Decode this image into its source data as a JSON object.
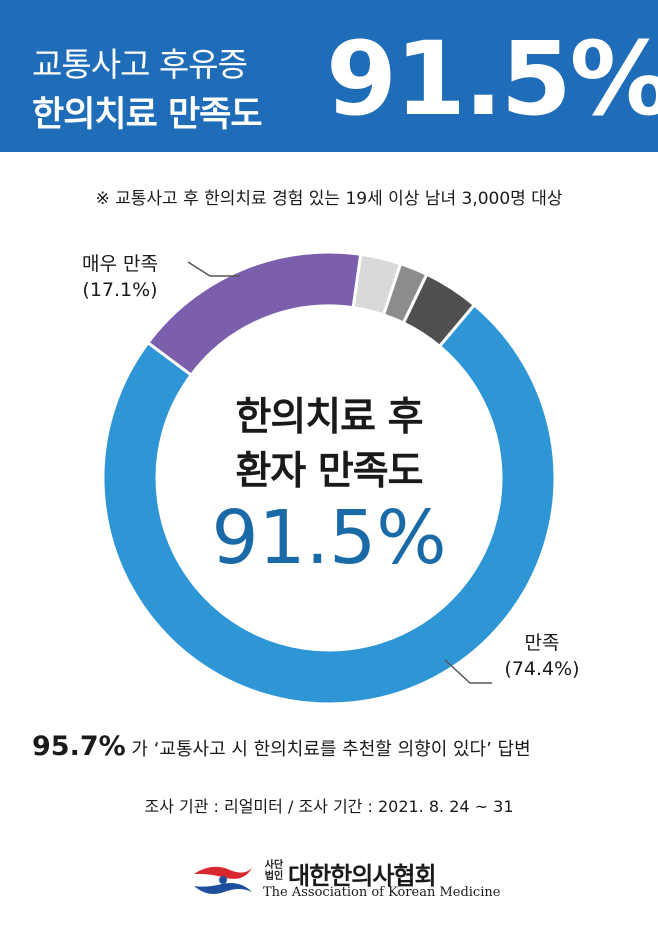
{
  "header": {
    "line1": "교통사고 후유증",
    "line2": "한의치료 만족도",
    "big_value": "91.5%"
  },
  "note": "※ 교통사고 후 한의치료 경험 있는 19세 이상 남녀 3,000명 대상",
  "chart_data": {
    "type": "pie",
    "title": "",
    "center_text": [
      "한의치료 후",
      "환자 만족도",
      "91.5%"
    ],
    "slices": [
      {
        "label": "만족",
        "value": 74.4,
        "value_text": "(74.4%)",
        "color": "#2f96d6"
      },
      {
        "label": "매우 만족",
        "value": 17.1,
        "value_text": "(17.1%)",
        "color": "#7b5fad"
      },
      {
        "label": "",
        "value": 2.9,
        "color": "#d9d9d9"
      },
      {
        "label": "",
        "value": 2.0,
        "color": "#8c8c8c"
      },
      {
        "label": "",
        "value": 4.0,
        "color": "#505050"
      }
    ]
  },
  "recommend": {
    "percent": "95.7%",
    "text": "가 ‘교통사고 시 한의치료를 추천할 의향이 있다’ 답변"
  },
  "survey_info": "조사 기관 : 리얼미터  /  조사 기간 : 2021. 8. 24 ~ 31",
  "logo": {
    "small_line1": "사단",
    "small_line2": "법인",
    "name": "대한한의사협회",
    "english": "The Association of Korean Medicine"
  },
  "colors": {
    "header_bg": "#1f6cb8",
    "center_value": "#1b6aa8"
  }
}
